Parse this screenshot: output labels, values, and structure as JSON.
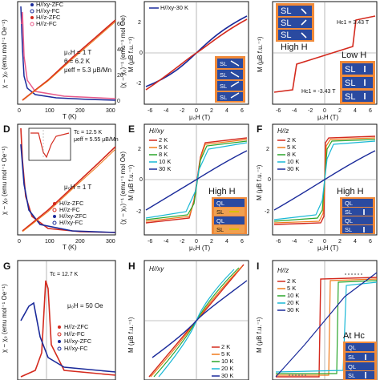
{
  "colors": {
    "red": "#d42a1e",
    "pink": "#e85a8a",
    "blue": "#1a2a9a",
    "orange": "#f07a1a",
    "green": "#2aa52a",
    "cyan": "#19b8d6",
    "purple": "#7a2a9a",
    "boxbg": "#f08a3a",
    "chipbg": "#2a4aa0"
  },
  "panels": {
    "A": {
      "legend": [
        "H//xy-ZFC",
        "H//xy-FC",
        "H//z-ZFC",
        "H//z-FC"
      ],
      "ylabel_left": "χ − χ₀ (emu mol⁻¹ Oe⁻¹)",
      "ylabel_right": "(χ − χ₀)⁻¹ (emu⁻¹ mol Oe)",
      "xlabel": "T (K)",
      "xticks": [
        "0",
        "100",
        "200",
        "300"
      ],
      "yticks_right": [
        "0",
        "20",
        "40",
        "60"
      ],
      "ann": [
        "μ₀H = 1 T",
        "θ = 6.2 K",
        "μeff = 5.3 μB/Mn"
      ]
    },
    "B": {
      "legend": [
        "H//xy-30 K"
      ],
      "ylabel": "M (μB f.u.⁻¹)",
      "xlabel": "μ₀H (T)",
      "xticks": [
        "-6",
        "-4",
        "-2",
        "0",
        "2",
        "4",
        "6"
      ],
      "yticks": [
        "-2",
        "0",
        "2"
      ],
      "chips": [
        "SL",
        "SL",
        "SL",
        "SL"
      ]
    },
    "C": {
      "ylabel": "M (μB f.u.⁻¹)",
      "xlabel": "μ₀H (T)",
      "xticks": [
        "-6",
        "-4",
        "-2",
        "0",
        "2",
        "4",
        "6"
      ],
      "yticks": [
        "-2",
        "0",
        "2"
      ],
      "high": "High H",
      "low": "Low H",
      "hc_pos": "Hc1 = 3.43 T",
      "hc_neg": "Hc1 = -3.43 T",
      "chips": [
        "SL",
        "SL",
        "SL",
        "SL",
        "SL",
        "SL"
      ]
    },
    "D": {
      "label": "D",
      "ylabel_left": "χ − χ₀ (emu mol⁻¹ Oe⁻¹)",
      "ylabel_right": "(χ − χ₀)⁻¹ (emu⁻¹ mol Oe)",
      "xlabel": "T (K)",
      "xticks": [
        "0",
        "100",
        "200",
        "300"
      ],
      "ann": [
        "Tc = 12.5 K",
        "μeff = 5.55 μB/Mn",
        "μ₀H = 1 T"
      ],
      "legend": [
        "H//z-ZFC",
        "H//z-FC",
        "H//xy-ZFC",
        "H//xy-FC"
      ]
    },
    "E": {
      "label": "E",
      "title": "H//xy",
      "legend": [
        "2 K",
        "5 K",
        "8 K",
        "10 K",
        "30 K"
      ],
      "ylabel": "M (μB f.u.⁻¹)",
      "xlabel": "μ₀H (T)",
      "xticks": [
        "-6",
        "-4",
        "-2",
        "0",
        "2",
        "4",
        "6"
      ],
      "yticks": [
        "-2",
        "0",
        "2"
      ],
      "high": "High H",
      "chips": [
        "QL",
        "SL",
        "QL",
        "SL"
      ]
    },
    "F": {
      "label": "F",
      "title": "H//z",
      "legend": [
        "2 K",
        "5 K",
        "8 K",
        "10 K",
        "30 K"
      ],
      "ylabel": "M (μB f.u.⁻¹)",
      "xlabel": "μ₀H (T)",
      "xticks": [
        "-6",
        "-4",
        "-2",
        "0",
        "2",
        "4",
        "6"
      ],
      "yticks": [
        "-2",
        "0",
        "2"
      ],
      "high": "High H",
      "chips": [
        "QL",
        "SL",
        "QL",
        "SL"
      ]
    },
    "G": {
      "label": "G",
      "ann": [
        "Tc = 12.7 K",
        "μ₀H = 50 Oe"
      ],
      "legend": [
        "H//z-ZFC",
        "H//z-FC",
        "H//xy-ZFC",
        "H//xy-FC"
      ],
      "ylabel": "χ − χ₀ (emu mol⁻¹ Oe⁻¹)"
    },
    "H": {
      "label": "H",
      "title": "H//xy",
      "legend": [
        "2 K",
        "5 K",
        "10 K",
        "20 K",
        "30 K"
      ],
      "ylabel": "M (μB f.u.⁻¹)"
    },
    "I": {
      "label": "I",
      "title": "H//z",
      "legend": [
        "2 K",
        "5 K",
        "10 K",
        "20 K",
        "30 K"
      ],
      "ylabel": "M (μB f.u.⁻¹)",
      "at": "At Hc",
      "chips": [
        "QL",
        "SL",
        "QL",
        "SL"
      ]
    }
  }
}
